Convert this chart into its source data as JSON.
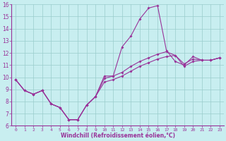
{
  "x": [
    0,
    1,
    2,
    3,
    4,
    5,
    6,
    7,
    8,
    9,
    10,
    11,
    12,
    13,
    14,
    15,
    16,
    17,
    18,
    19,
    20,
    21,
    22,
    23
  ],
  "y_main": [
    9.8,
    8.9,
    8.6,
    8.9,
    7.8,
    7.5,
    6.5,
    6.5,
    7.7,
    8.4,
    10.1,
    10.1,
    12.5,
    13.4,
    14.8,
    15.7,
    15.9,
    12.2,
    11.3,
    11.0,
    11.7,
    11.4,
    11.4,
    11.6
  ],
  "y_low": [
    9.8,
    8.9,
    8.6,
    8.9,
    7.8,
    7.5,
    6.5,
    6.5,
    7.7,
    8.4,
    9.6,
    9.8,
    10.1,
    10.5,
    10.9,
    11.2,
    11.5,
    11.7,
    11.8,
    10.9,
    11.3,
    11.4,
    11.4,
    11.6
  ],
  "y_high": [
    9.8,
    8.9,
    8.6,
    8.9,
    7.8,
    7.5,
    6.5,
    6.5,
    7.7,
    8.4,
    9.9,
    10.1,
    10.4,
    10.9,
    11.3,
    11.6,
    11.9,
    12.1,
    11.8,
    11.1,
    11.5,
    11.4,
    11.4,
    11.6
  ],
  "line_color": "#993399",
  "bg_color": "#c8eef0",
  "grid_color": "#99cccc",
  "xlabel": "Windchill (Refroidissement éolien,°C)",
  "ylim": [
    6,
    16
  ],
  "xlim": [
    -0.5,
    23.5
  ],
  "yticks": [
    6,
    7,
    8,
    9,
    10,
    11,
    12,
    13,
    14,
    15,
    16
  ],
  "xticks": [
    0,
    1,
    2,
    3,
    4,
    5,
    6,
    7,
    8,
    9,
    10,
    11,
    12,
    13,
    14,
    15,
    16,
    17,
    18,
    19,
    20,
    21,
    22,
    23
  ],
  "marker": "D",
  "markersize": 2.0,
  "linewidth": 0.8
}
